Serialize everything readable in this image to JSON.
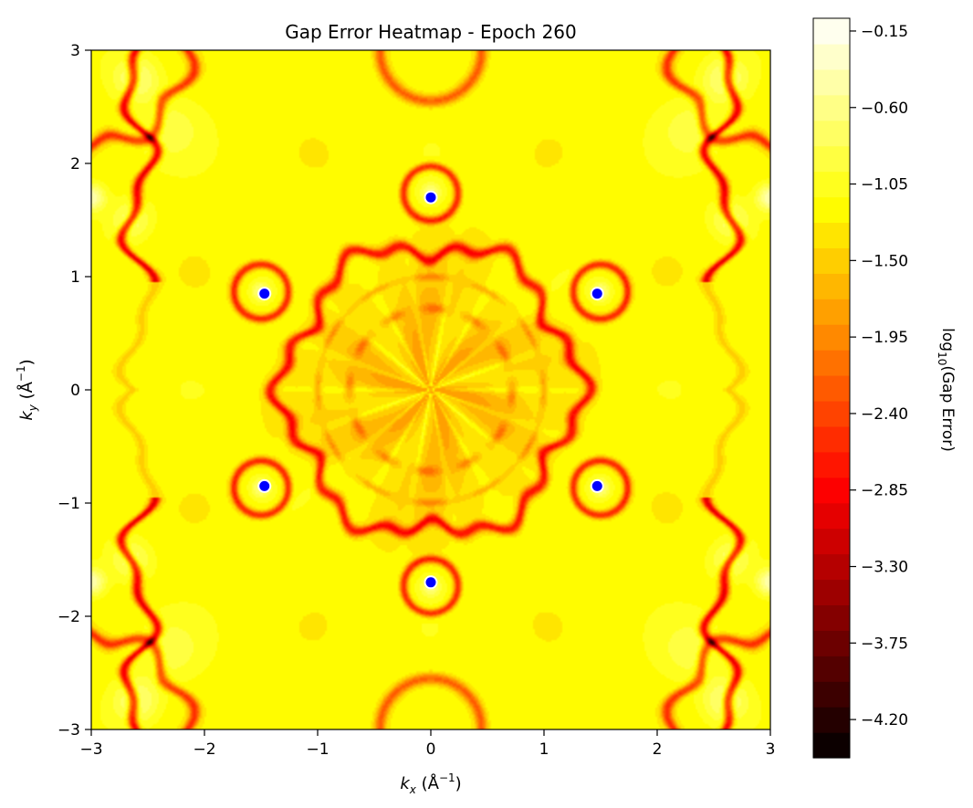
{
  "chart_data": {
    "type": "heatmap",
    "title": "Gap Error Heatmap - Epoch 260",
    "xlabel": {
      "sym": "k",
      "sub": "x",
      "unit_open": " (Å",
      "unit_sup": "−1",
      "unit_close": ")"
    },
    "ylabel": {
      "sym": "k",
      "sub": "y",
      "unit_open": " (Å",
      "unit_sup": "−1",
      "unit_close": ")"
    },
    "xlim": [
      -3,
      3
    ],
    "ylim": [
      -3,
      3
    ],
    "x_ticks": [
      {
        "value": -3,
        "label": "−3"
      },
      {
        "value": -2,
        "label": "−2"
      },
      {
        "value": -1,
        "label": "−1"
      },
      {
        "value": 0,
        "label": "0"
      },
      {
        "value": 1,
        "label": "1"
      },
      {
        "value": 2,
        "label": "2"
      },
      {
        "value": 3,
        "label": "3"
      }
    ],
    "y_ticks": [
      {
        "value": -3,
        "label": "−3"
      },
      {
        "value": -2,
        "label": "−2"
      },
      {
        "value": -1,
        "label": "−1"
      },
      {
        "value": 0,
        "label": "0"
      },
      {
        "value": 1,
        "label": "1"
      },
      {
        "value": 2,
        "label": "2"
      },
      {
        "value": 3,
        "label": "3"
      }
    ],
    "colorbar": {
      "label_prefix": "log",
      "label_sub": "10",
      "label_suffix": "(Gap Error)",
      "colormap": "hot",
      "range": [
        -4.425,
        -0.075
      ],
      "levels": 29,
      "ticks": [
        {
          "value": -0.15,
          "label": "−0.15"
        },
        {
          "value": -0.6,
          "label": "−0.60"
        },
        {
          "value": -1.05,
          "label": "−1.05"
        },
        {
          "value": -1.5,
          "label": "−1.50"
        },
        {
          "value": -1.95,
          "label": "−1.95"
        },
        {
          "value": -2.4,
          "label": "−2.40"
        },
        {
          "value": -2.85,
          "label": "−2.85"
        },
        {
          "value": -3.3,
          "label": "−3.30"
        },
        {
          "value": -3.75,
          "label": "−3.75"
        },
        {
          "value": -4.2,
          "label": "−4.20"
        }
      ]
    },
    "points": [
      {
        "x": 0.0,
        "y": 1.7
      },
      {
        "x": 1.47,
        "y": 0.85
      },
      {
        "x": 1.47,
        "y": -0.85
      },
      {
        "x": 0.0,
        "y": -1.7
      },
      {
        "x": -1.47,
        "y": -0.85
      },
      {
        "x": -1.47,
        "y": 0.85
      }
    ],
    "point_color": "#0000ff"
  }
}
